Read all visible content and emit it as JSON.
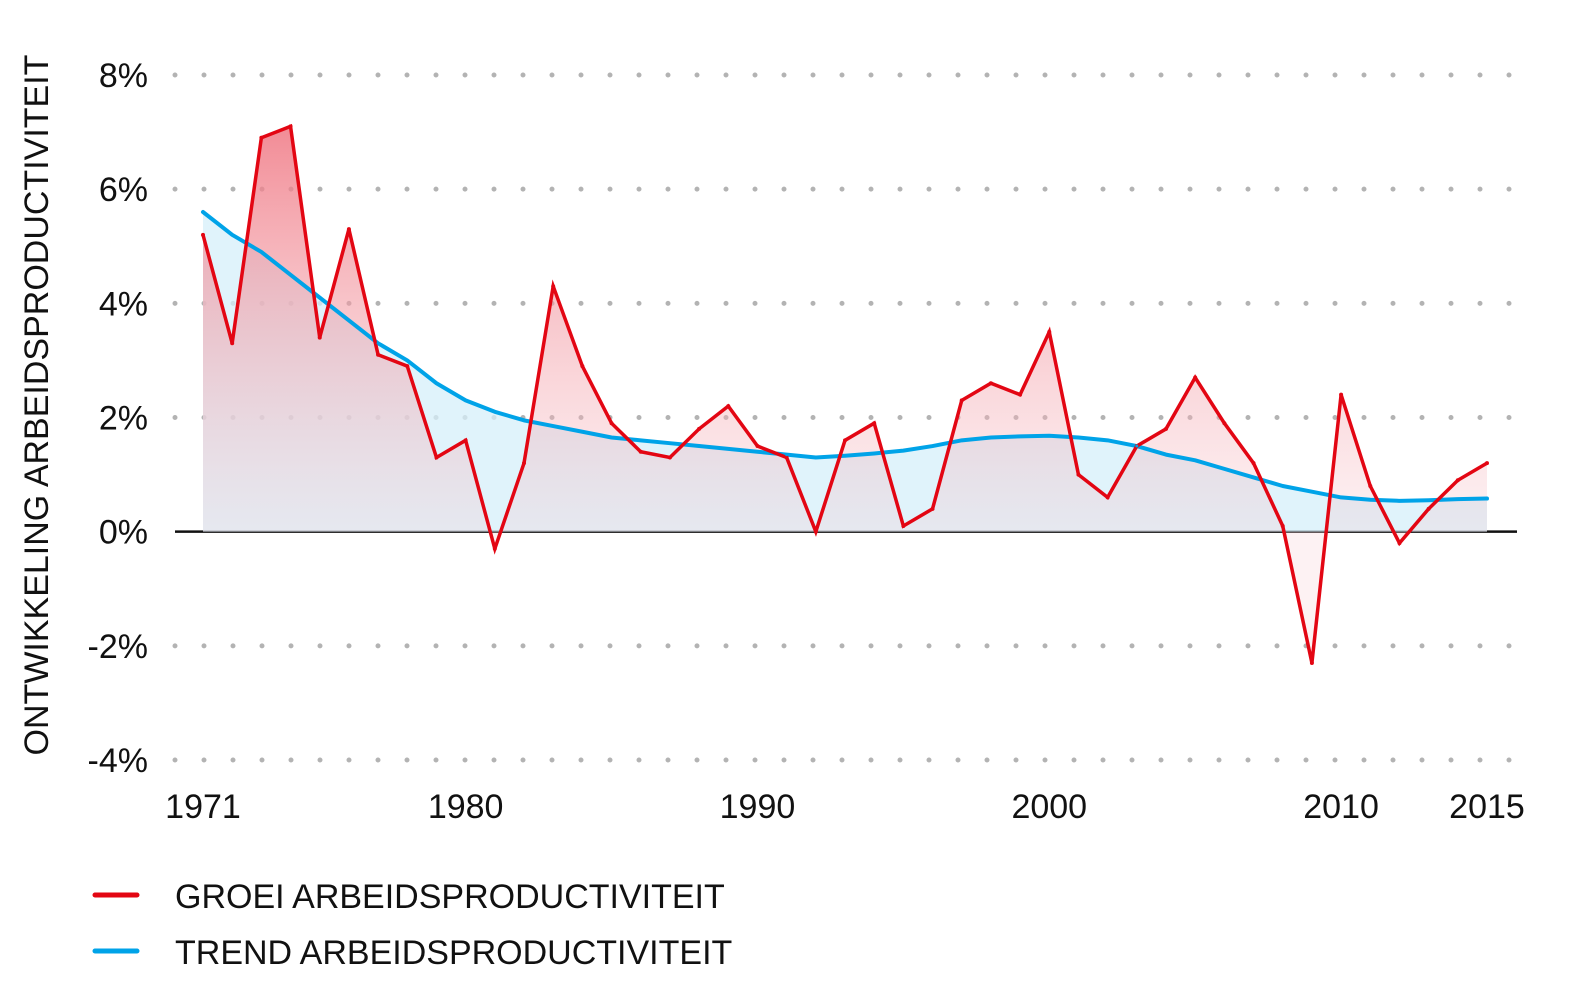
{
  "colors": {
    "growth": "#e30613",
    "trend": "#00a3e8",
    "growth_fill_top": "#f08c96",
    "trend_fill": "#d6effa",
    "grid": "#b3b3b3",
    "zero_line": "#111111"
  },
  "chart_data": {
    "type": "line",
    "title": "",
    "ylabel": "ONTWIKKELING ARBEIDSPRODUCTIVITEIT",
    "xlabel": "",
    "ylim": [
      -4,
      8
    ],
    "yticks": [
      {
        "value": 8,
        "label": "8%"
      },
      {
        "value": 6,
        "label": "6%"
      },
      {
        "value": 4,
        "label": "4%"
      },
      {
        "value": 2,
        "label": "2%"
      },
      {
        "value": 0,
        "label": "0%"
      },
      {
        "value": -2,
        "label": "-2%"
      },
      {
        "value": -4,
        "label": "-4%"
      }
    ],
    "xlim": [
      1971,
      2015
    ],
    "xticks": [
      {
        "value": 1971,
        "label": "1971"
      },
      {
        "value": 1980,
        "label": "1980"
      },
      {
        "value": 1990,
        "label": "1990"
      },
      {
        "value": 2000,
        "label": "2000"
      },
      {
        "value": 2010,
        "label": "2010"
      },
      {
        "value": 2015,
        "label": "2015"
      }
    ],
    "grid": "horizontal dotted",
    "legend_position": "bottom-left",
    "x": [
      1971,
      1972,
      1973,
      1974,
      1975,
      1976,
      1977,
      1978,
      1979,
      1980,
      1981,
      1982,
      1983,
      1984,
      1985,
      1986,
      1987,
      1988,
      1989,
      1990,
      1991,
      1992,
      1993,
      1994,
      1995,
      1996,
      1997,
      1998,
      1999,
      2000,
      2001,
      2002,
      2003,
      2004,
      2005,
      2006,
      2007,
      2008,
      2009,
      2010,
      2011,
      2012,
      2013,
      2014,
      2015
    ],
    "series": [
      {
        "name": "GROEI ARBEIDSPRODUCTIVITEIT",
        "values": [
          5.2,
          3.3,
          6.9,
          7.1,
          3.4,
          5.3,
          3.1,
          2.9,
          1.3,
          1.6,
          -0.3,
          1.2,
          4.3,
          2.9,
          1.9,
          1.4,
          1.3,
          1.8,
          2.2,
          1.5,
          1.3,
          0.0,
          1.6,
          1.9,
          0.1,
          0.4,
          2.3,
          2.6,
          2.4,
          3.5,
          1.0,
          0.6,
          1.5,
          1.8,
          2.7,
          1.9,
          1.2,
          0.1,
          -2.3,
          2.4,
          0.8,
          -0.2,
          0.4,
          0.9,
          1.2
        ]
      },
      {
        "name": "TREND ARBEIDSPRODUCTIVITEIT",
        "values": [
          5.6,
          5.2,
          4.9,
          4.5,
          4.1,
          3.7,
          3.3,
          3.0,
          2.6,
          2.3,
          2.1,
          1.95,
          1.85,
          1.75,
          1.65,
          1.6,
          1.55,
          1.5,
          1.45,
          1.4,
          1.35,
          1.3,
          1.33,
          1.37,
          1.42,
          1.5,
          1.6,
          1.65,
          1.67,
          1.68,
          1.65,
          1.6,
          1.5,
          1.35,
          1.25,
          1.1,
          0.95,
          0.8,
          0.7,
          0.6,
          0.56,
          0.54,
          0.55,
          0.57,
          0.58
        ]
      }
    ]
  }
}
